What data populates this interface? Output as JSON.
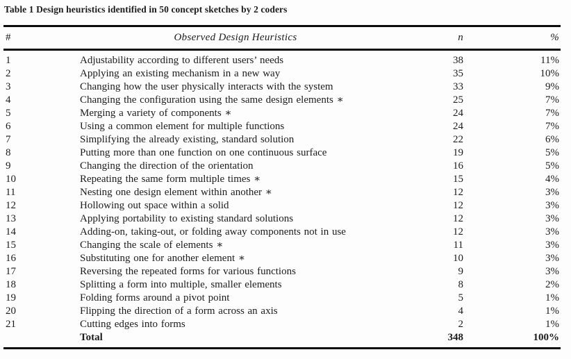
{
  "table": {
    "title": "Table 1 Design heuristics identified in 50 concept sketches by 2 coders",
    "header": {
      "num": "#",
      "heuristic": "Observed Design Heuristics",
      "n": "n",
      "pct": "%"
    },
    "rows": [
      {
        "num": "1",
        "heuristic": "Adjustability according to different users’ needs",
        "n": "38",
        "pct": "11%"
      },
      {
        "num": "2",
        "heuristic": "Applying an existing mechanism in a new way",
        "n": "35",
        "pct": "10%"
      },
      {
        "num": "3",
        "heuristic": "Changing how the user physically interacts with the system",
        "n": "33",
        "pct": "9%"
      },
      {
        "num": "4",
        "heuristic": "Changing the configuration using the same design elements ∗",
        "n": "25",
        "pct": "7%"
      },
      {
        "num": "5",
        "heuristic": "Merging a variety of components ∗",
        "n": "24",
        "pct": "7%"
      },
      {
        "num": "6",
        "heuristic": "Using a common element for multiple functions",
        "n": "24",
        "pct": "7%"
      },
      {
        "num": "7",
        "heuristic": "Simplifying the already existing, standard solution",
        "n": "22",
        "pct": "6%"
      },
      {
        "num": "8",
        "heuristic": "Putting more than one function on one continuous surface",
        "n": "19",
        "pct": "5%"
      },
      {
        "num": "9",
        "heuristic": "Changing the direction of the orientation",
        "n": "16",
        "pct": "5%"
      },
      {
        "num": "10",
        "heuristic": "Repeating the same form multiple times ∗",
        "n": "15",
        "pct": "4%"
      },
      {
        "num": "11",
        "heuristic": "Nesting one design element within another ∗",
        "n": "12",
        "pct": "3%"
      },
      {
        "num": "12",
        "heuristic": "Hollowing out space within a solid",
        "n": "12",
        "pct": "3%"
      },
      {
        "num": "13",
        "heuristic": "Applying portability to existing standard solutions",
        "n": "12",
        "pct": "3%"
      },
      {
        "num": "14",
        "heuristic": "Adding-on, taking-out, or folding away components not in use",
        "n": "12",
        "pct": "3%"
      },
      {
        "num": "15",
        "heuristic": "Changing the scale of elements ∗",
        "n": "11",
        "pct": "3%"
      },
      {
        "num": "16",
        "heuristic": "Substituting one for another element ∗",
        "n": "10",
        "pct": "3%"
      },
      {
        "num": "17",
        "heuristic": "Reversing the repeated forms for various functions",
        "n": "9",
        "pct": "3%"
      },
      {
        "num": "18",
        "heuristic": "Splitting a form into multiple, smaller elements",
        "n": "8",
        "pct": "2%"
      },
      {
        "num": "19",
        "heuristic": "Folding forms around a pivot point",
        "n": "5",
        "pct": "1%"
      },
      {
        "num": "20",
        "heuristic": "Flipping the direction of a form across an axis",
        "n": "4",
        "pct": "1%"
      },
      {
        "num": "21",
        "heuristic": "Cutting edges into forms",
        "n": "2",
        "pct": "1%"
      }
    ],
    "total": {
      "num": "",
      "label": "Total",
      "n": "348",
      "pct": "100%"
    },
    "colors": {
      "text": "#1c1c1c",
      "rule": "#0c0c0c",
      "background": "#fdfdfd"
    }
  }
}
